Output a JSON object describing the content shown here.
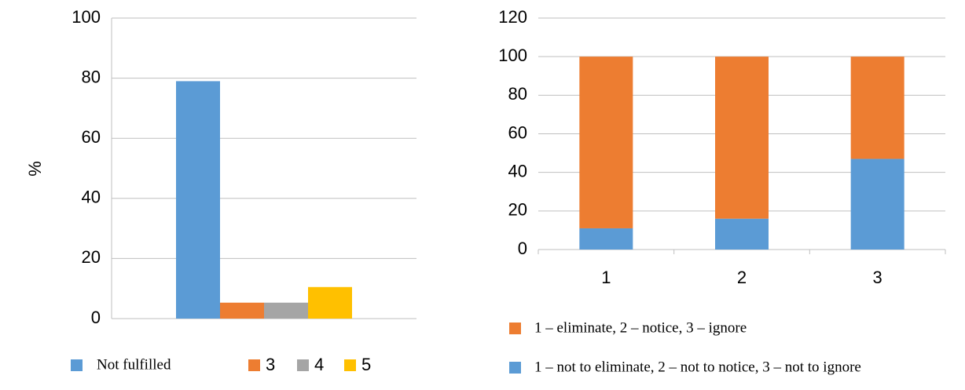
{
  "chart_data": [
    {
      "type": "bar",
      "y_label": "%",
      "categories": [
        null
      ],
      "series": [
        {
          "name": "Not fulfilled",
          "color": "#5b9bd5",
          "values": [
            79
          ]
        },
        {
          "name": "3",
          "color": "#ed7d31",
          "values": [
            5.3
          ]
        },
        {
          "name": "4",
          "color": "#a5a5a5",
          "values": [
            5.3
          ]
        },
        {
          "name": "5",
          "color": "#ffc000",
          "values": [
            10.5
          ]
        }
      ],
      "ylim": [
        0,
        100
      ],
      "yticks": [
        0,
        20,
        40,
        60,
        80,
        100
      ],
      "grid": true
    },
    {
      "type": "stacked_bar",
      "categories": [
        "1",
        "2",
        "3"
      ],
      "series": [
        {
          "name": "1 – not to eliminate, 2 – not to notice, 3 – not to ignore",
          "color": "#5b9bd5",
          "values": [
            11,
            16,
            47
          ]
        },
        {
          "name": "1 – eliminate, 2 – notice, 3 – ignore",
          "color": "#ed7d31",
          "values": [
            89,
            84,
            53
          ]
        }
      ],
      "ylim": [
        0,
        120
      ],
      "yticks": [
        0,
        20,
        40,
        60,
        80,
        100,
        120
      ],
      "grid": true
    }
  ]
}
